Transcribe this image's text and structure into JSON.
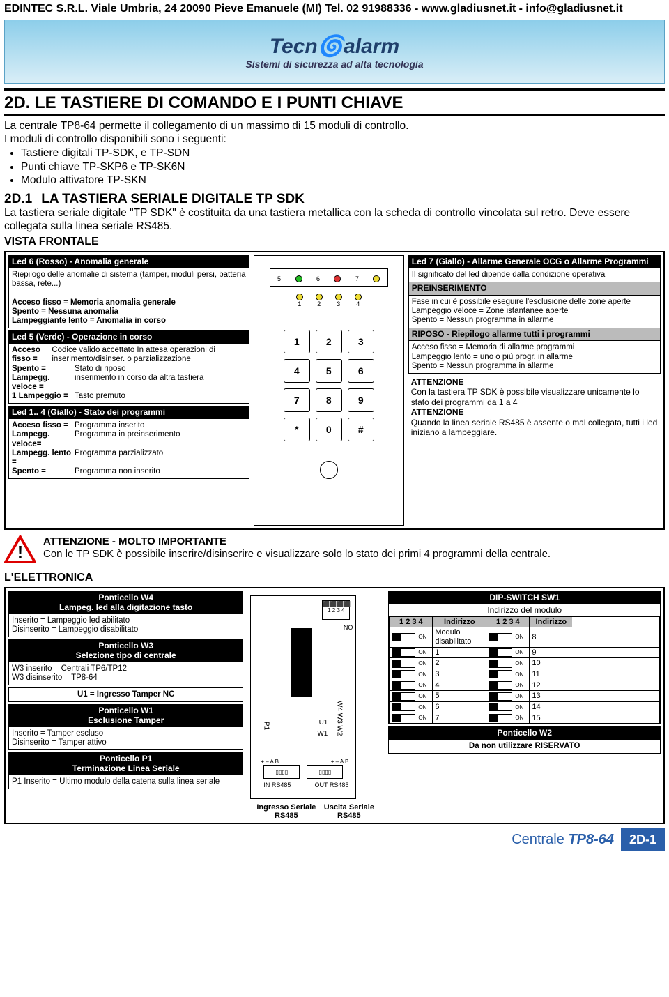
{
  "header": "EDINTEC S.R.L. Viale Umbria, 24 20090 Pieve Emanuele (MI) Tel. 02 91988336 - www.gladiusnet.it - info@gladiusnet.it",
  "logo": {
    "brand": "Tecn🌀alarm",
    "tagline": "Sistemi di sicurezza ad alta tecnologia"
  },
  "title": "2D.  LE TASTIERE DI COMANDO E I PUNTI CHIAVE",
  "intro1": "La centrale TP8-64 permette il collegamento di un massimo di 15 moduli di controllo.",
  "intro2": "I moduli di controllo disponibili sono i seguenti:",
  "bullets": [
    "Tastiere digitali TP-SDK, e TP-SDN",
    "Punti chiave TP-SKP6 e TP-SK6N",
    "Modulo attivatore TP-SKN"
  ],
  "subnum": "2D.1",
  "subtitle": "LA TASTIERA SERIALE DIGITALE  TP SDK",
  "subbody": "La tastiera seriale digitale \"TP SDK\" è costituita da una tastiera metallica con la scheda di controllo vincolata sul retro. Deve essere collegata sulla linea seriale RS485.",
  "vista": "VISTA FRONTALE",
  "d1": {
    "led6": {
      "head": "Led 6 (Rosso) - Anomalia generale",
      "l1": "Riepilogo delle anomalie di sistema (tamper, moduli persi, batteria bassa, rete...)",
      "l2": "Acceso fisso = Memoria anomalia generale",
      "l3": "Spento = Nessuna anomalia",
      "l4": "Lampeggiante lento = Anomalia in corso"
    },
    "led5": {
      "head": "Led 5 (Verde) - Operazione in corso",
      "r1k": "Acceso fisso =",
      "r1v": "Codice valido accettato In attesa operazioni di inserimento/disinser. o parzializzazione",
      "r2k": "Spento =",
      "r2v": "Stato di riposo",
      "r3k": "Lampegg. veloce =",
      "r3v": "inserimento in corso da altra tastiera",
      "r4k": "1 Lampeggio =",
      "r4v": "Tasto premuto"
    },
    "led14": {
      "head": "Led 1.. 4 (Giallo) - Stato dei programmi",
      "r1k": "Acceso fisso =",
      "r1v": "Programma inserito",
      "r2k": "Lampegg. veloce=",
      "r2v": "Programma in preinserimento",
      "r3k": "Lampegg. lento =",
      "r3v": "Programma parzializzato",
      "r4k": "Spento =",
      "r4v": "Programma non inserito"
    },
    "led7": {
      "head": "Led 7 (Giallo) - Allarme Generale OCG o Allarme Programmi",
      "l1": "Il significato del led dipende dalla condizione operativa",
      "pre_h": "PREINSERIMENTO",
      "pre_b": "Fase in cui è possibile eseguire l'esclusione delle zone aperte\nLampeggio veloce = Zone istantanee aperte\nSpento  = Nessun programma in allarme",
      "rip_h": "RIPOSO - Riepilogo allarme tutti i programmi",
      "rip_b": "Acceso fisso = Memoria di allarme programmi\nLampeggio lento = uno o più progr. in allarme\nSpento  = Nessun programma in allarme"
    },
    "att_h": "ATTENZIONE",
    "att1": "Con la tastiera TP SDK è possibile visualizzare unicamente lo stato dei programmi da 1 a 4",
    "att2": "Quando la linea seriale RS485 è assente o mal collegata, tutti i led iniziano a lampeggiare.",
    "led_nums": [
      "5",
      "6",
      "7"
    ],
    "prog_nums": [
      "1",
      "2",
      "3",
      "4"
    ],
    "keys": [
      "1",
      "2",
      "3",
      "4",
      "5",
      "6",
      "7",
      "8",
      "9",
      "*",
      "0",
      "#"
    ]
  },
  "att_big": {
    "head": "ATTENZIONE  - MOLTO IMPORTANTE",
    "body": "Con le TP SDK è possibile inserire/disinserire e visualizzare solo lo stato dei primi 4 programmi della centrale."
  },
  "elettronica": "L'ELETTRONICA",
  "d2": {
    "w4": {
      "head": "Ponticello W4\nLampeg. led alla digitazione tasto",
      "b": "Inserito    = Lampeggio led abilitato\nDisinserito = Lampeggio disabilitato"
    },
    "w3": {
      "head": "Ponticello W3\nSelezione tipo di centrale",
      "b": "W3 inserito   = Centrali TP6/TP12\nW3 disinserito = TP8-64"
    },
    "u1": {
      "head": "U1 = Ingresso Tamper NC"
    },
    "w1": {
      "head": "Ponticello W1\nEsclusione Tamper",
      "b": "Inserito    = Tamper escluso\nDisinserito = Tamper attivo"
    },
    "p1": {
      "head": "Ponticello P1\nTerminazione Linea  Seriale",
      "b": "P1 Inserito = Ultimo modulo della catena sulla linea seriale"
    },
    "dip": {
      "head": "DIP-SWITCH SW1",
      "sub": "Indirizzo del modulo",
      "ch": [
        "1 2 3 4",
        "Indirizzo",
        "1 2 3 4",
        "Indirizzo"
      ],
      "first": "Modulo disabilitato",
      "left": [
        "1",
        "2",
        "3",
        "4",
        "5",
        "6",
        "7"
      ],
      "right": [
        "8",
        "9",
        "10",
        "11",
        "12",
        "13",
        "14",
        "15"
      ]
    },
    "w2": {
      "head": "Ponticello W2",
      "b": "Da non utilizzare RISERVATO"
    },
    "in": "Ingresso Seriale RS485",
    "out": "Uscita Seriale RS485",
    "inlab": "IN RS485",
    "outlab": "OUT RS485"
  },
  "footer": {
    "cent_a": "Centrale ",
    "cent_b": "TP8-64",
    "page": "2D-1"
  }
}
